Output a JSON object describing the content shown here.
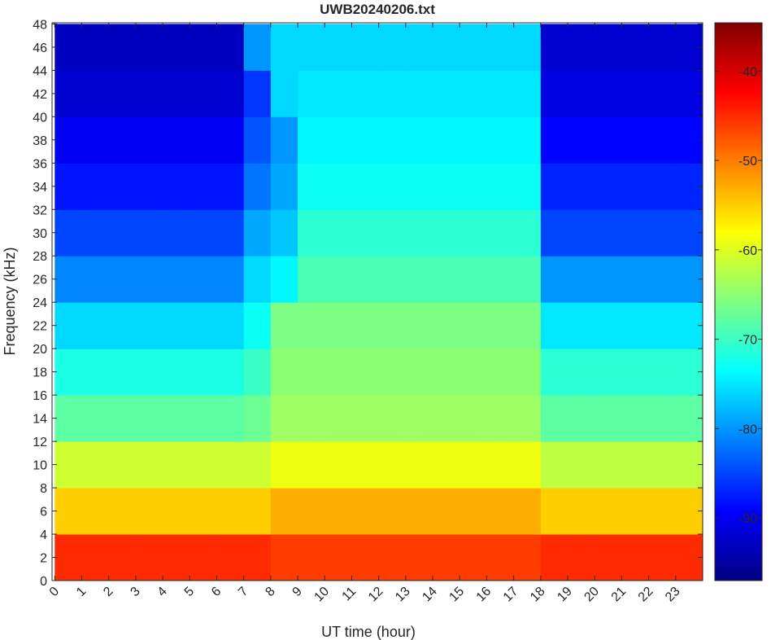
{
  "chart_data": {
    "type": "heatmap",
    "title": "UWB20240206.txt",
    "x_label": "UT time (hour)",
    "y_label": "Frequency (kHz)",
    "x": [
      0,
      1,
      2,
      3,
      4,
      5,
      6,
      7,
      8,
      9,
      10,
      11,
      12,
      13,
      14,
      15,
      16,
      17,
      18,
      19,
      20,
      21,
      22,
      23,
      24
    ],
    "y": [
      0,
      4,
      8,
      12,
      16,
      20,
      24,
      28,
      32,
      36,
      40,
      44,
      48
    ],
    "z": [
      [
        -45,
        -45,
        -45,
        -45,
        -45,
        -45,
        -45,
        -45,
        -46,
        -46,
        -46,
        -46,
        -46,
        -46,
        -46,
        -46,
        -46,
        -46,
        -45,
        -45,
        -45,
        -45,
        -45,
        -45
      ],
      [
        -55,
        -55,
        -55,
        -55,
        -55,
        -55,
        -55,
        -55,
        -53,
        -53,
        -53,
        -53,
        -53,
        -53,
        -53,
        -53,
        -53,
        -53,
        -55,
        -55,
        -55,
        -55,
        -55,
        -55
      ],
      [
        -61,
        -61,
        -61,
        -61,
        -61,
        -61,
        -61,
        -61,
        -59,
        -59,
        -59,
        -59,
        -59,
        -59,
        -59,
        -59,
        -59,
        -59,
        -62,
        -62,
        -62,
        -62,
        -62,
        -62
      ],
      [
        -68,
        -68,
        -68,
        -68,
        -68,
        -68,
        -68,
        -67,
        -64,
        -64,
        -64,
        -64,
        -64,
        -64,
        -64,
        -64,
        -64,
        -64,
        -68,
        -68,
        -68,
        -68,
        -68,
        -68
      ],
      [
        -72,
        -72,
        -72,
        -72,
        -72,
        -72,
        -72,
        -70,
        -65,
        -65,
        -65,
        -65,
        -65,
        -65,
        -65,
        -65,
        -65,
        -65,
        -71,
        -71,
        -71,
        -71,
        -71,
        -71
      ],
      [
        -76,
        -76,
        -76,
        -76,
        -76,
        -76,
        -76,
        -73,
        -66,
        -66,
        -66,
        -66,
        -66,
        -66,
        -66,
        -66,
        -66,
        -66,
        -75,
        -75,
        -75,
        -75,
        -75,
        -75
      ],
      [
        -81,
        -81,
        -81,
        -81,
        -81,
        -81,
        -81,
        -76,
        -74,
        -69,
        -69,
        -69,
        -69,
        -69,
        -69,
        -69,
        -69,
        -69,
        -80,
        -80,
        -80,
        -80,
        -80,
        -80
      ],
      [
        -85,
        -85,
        -85,
        -85,
        -85,
        -85,
        -85,
        -79,
        -77,
        -71,
        -71,
        -71,
        -71,
        -71,
        -71,
        -71,
        -71,
        -71,
        -85,
        -85,
        -85,
        -85,
        -85,
        -85
      ],
      [
        -88,
        -88,
        -88,
        -88,
        -88,
        -88,
        -88,
        -82,
        -79,
        -73,
        -73,
        -73,
        -73,
        -73,
        -73,
        -73,
        -73,
        -73,
        -87,
        -87,
        -87,
        -87,
        -87,
        -87
      ],
      [
        -90,
        -90,
        -90,
        -90,
        -90,
        -90,
        -90,
        -84,
        -80,
        -74,
        -74,
        -74,
        -74,
        -74,
        -74,
        -74,
        -74,
        -74,
        -89,
        -89,
        -89,
        -89,
        -89,
        -89
      ],
      [
        -92,
        -92,
        -92,
        -92,
        -92,
        -92,
        -92,
        -86,
        -76,
        -75,
        -75,
        -75,
        -75,
        -75,
        -75,
        -75,
        -75,
        -75,
        -91,
        -91,
        -91,
        -91,
        -91,
        -91
      ],
      [
        -93,
        -93,
        -93,
        -93,
        -93,
        -93,
        -93,
        -80,
        -76,
        -76,
        -76,
        -76,
        -76,
        -76,
        -76,
        -76,
        -76,
        -76,
        -92,
        -92,
        -92,
        -92,
        -92,
        -92
      ]
    ],
    "xlim": [
      -0.1,
      24
    ],
    "ylim": [
      0,
      48.1
    ],
    "xticks": [
      0,
      1,
      2,
      3,
      4,
      5,
      6,
      7,
      8,
      9,
      10,
      11,
      12,
      13,
      14,
      15,
      16,
      17,
      18,
      19,
      20,
      21,
      22,
      23
    ],
    "yticks": [
      0,
      2,
      4,
      6,
      8,
      10,
      12,
      14,
      16,
      18,
      20,
      22,
      24,
      26,
      28,
      30,
      32,
      34,
      36,
      38,
      40,
      42,
      44,
      46,
      48
    ],
    "colormap": "jet",
    "clim": [
      -97,
      -34.6
    ],
    "cticks": [
      -90,
      -80,
      -70,
      -60,
      -50,
      -40
    ]
  }
}
